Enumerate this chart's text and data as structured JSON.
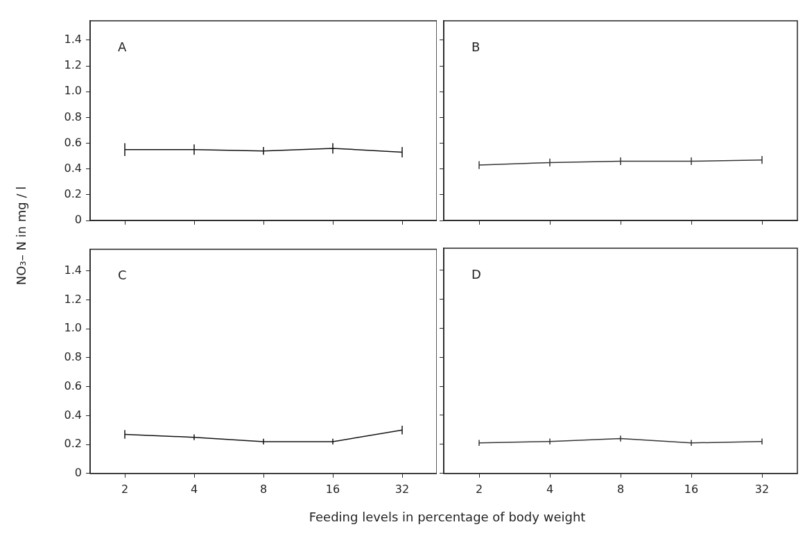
{
  "chart_data": [
    {
      "type": "line",
      "title": "A",
      "ylabel": "NO₃– N in mg / l",
      "categories": [
        "2",
        "4",
        "8",
        "16",
        "32"
      ],
      "series": [
        {
          "color": "#111111",
          "values": [
            0.55,
            0.55,
            0.54,
            0.56,
            0.53
          ],
          "errors": [
            0.05,
            0.04,
            0.03,
            0.04,
            0.04
          ]
        }
      ],
      "ylim": [
        0,
        1.55
      ],
      "yticks": [
        0,
        0.2,
        0.4,
        0.6,
        0.8,
        {
          "value": 1,
          "label": "1.0"
        },
        1.2,
        1.4
      ],
      "tick_labels": "y",
      "marker": "none"
    },
    {
      "type": "line",
      "title": "B",
      "categories": [
        "2",
        "4",
        "8",
        "16",
        "32"
      ],
      "series": [
        {
          "color": "#333333",
          "values": [
            0.43,
            0.45,
            0.46,
            0.46,
            0.47
          ],
          "errors": [
            0.03,
            0.03,
            0.03,
            0.03,
            0.03
          ]
        }
      ],
      "ylim": [
        0,
        1.55
      ],
      "yticks": [
        {
          "value": 0,
          "label": null
        },
        {
          "value": 0.2,
          "label": null
        },
        {
          "value": 0.4,
          "label": null
        },
        {
          "value": 0.6,
          "label": null
        },
        {
          "value": 0.8,
          "label": null
        },
        {
          "value": 1,
          "label": null
        },
        {
          "value": 1.2,
          "label": null
        },
        {
          "value": 1.4,
          "label": null
        }
      ],
      "tick_labels": false,
      "marker": "none"
    },
    {
      "type": "line",
      "title": "C",
      "xlabel": "Feeding levels in percentage of body weight",
      "categories": [
        "2",
        "4",
        "8",
        "16",
        "32"
      ],
      "series": [
        {
          "color": "#111111",
          "values": [
            0.27,
            0.25,
            0.22,
            0.22,
            0.3
          ],
          "errors": [
            0.03,
            0.02,
            0.02,
            0.02,
            0.03
          ]
        }
      ],
      "ylim": [
        0,
        1.55
      ],
      "yticks": [
        0,
        0.2,
        0.4,
        0.6,
        0.8,
        {
          "value": 1,
          "label": "1.0"
        },
        1.2,
        1.4
      ],
      "marker": "none"
    },
    {
      "type": "line",
      "title": "D",
      "categories": [
        "2",
        "4",
        "8",
        "16",
        "32"
      ],
      "series": [
        {
          "color": "#333333",
          "values": [
            0.21,
            0.22,
            0.24,
            0.21,
            0.22
          ],
          "errors": [
            0.02,
            0.02,
            0.02,
            0.02,
            0.02
          ]
        }
      ],
      "ylim": [
        0,
        1.55
      ],
      "yticks": [
        {
          "value": 0,
          "label": null
        },
        {
          "value": 0.2,
          "label": null
        },
        {
          "value": 0.4,
          "label": null
        },
        {
          "value": 0.6,
          "label": null
        },
        {
          "value": 0.8,
          "label": null
        },
        {
          "value": 1,
          "label": null
        },
        {
          "value": 1.2,
          "label": null
        },
        {
          "value": 1.4,
          "label": null
        }
      ],
      "tick_labels": "x",
      "marker": "none"
    }
  ]
}
